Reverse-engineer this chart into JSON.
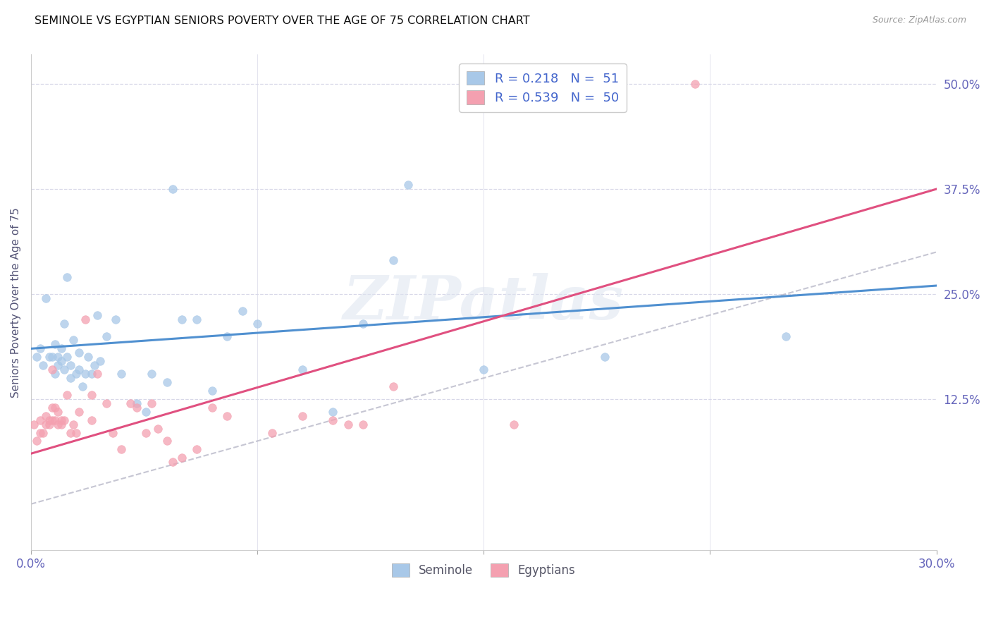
{
  "title": "SEMINOLE VS EGYPTIAN SENIORS POVERTY OVER THE AGE OF 75 CORRELATION CHART",
  "source": "Source: ZipAtlas.com",
  "ylabel": "Seniors Poverty Over the Age of 75",
  "xlim": [
    0.0,
    0.3
  ],
  "ylim": [
    -0.055,
    0.535
  ],
  "yticks_right": [
    0.125,
    0.25,
    0.375,
    0.5
  ],
  "ytick_labels_right": [
    "12.5%",
    "25.0%",
    "37.5%",
    "50.0%"
  ],
  "xticks": [
    0.0,
    0.075,
    0.15,
    0.225,
    0.3
  ],
  "xtick_labels": [
    "0.0%",
    "",
    "",
    "",
    "30.0%"
  ],
  "legend_label1": "R = 0.218   N =  51",
  "legend_label2": "R = 0.539   N =  50",
  "legend_bottom1": "Seminole",
  "legend_bottom2": "Egyptians",
  "blue_color": "#a8c8e8",
  "pink_color": "#f4a0b0",
  "blue_line_color": "#5090d0",
  "pink_line_color": "#e05080",
  "blue_trend_x0": 0.0,
  "blue_trend_y0": 0.185,
  "blue_trend_x1": 0.3,
  "blue_trend_y1": 0.26,
  "pink_trend_x0": 0.0,
  "pink_trend_y0": 0.06,
  "pink_trend_x1": 0.3,
  "pink_trend_y1": 0.375,
  "seminole_x": [
    0.002,
    0.003,
    0.004,
    0.005,
    0.006,
    0.007,
    0.008,
    0.008,
    0.009,
    0.009,
    0.01,
    0.01,
    0.011,
    0.011,
    0.012,
    0.012,
    0.013,
    0.013,
    0.014,
    0.015,
    0.016,
    0.016,
    0.017,
    0.018,
    0.019,
    0.02,
    0.021,
    0.022,
    0.023,
    0.025,
    0.028,
    0.03,
    0.035,
    0.038,
    0.04,
    0.045,
    0.047,
    0.05,
    0.055,
    0.06,
    0.065,
    0.07,
    0.075,
    0.09,
    0.1,
    0.11,
    0.12,
    0.125,
    0.15,
    0.19,
    0.25
  ],
  "seminole_y": [
    0.175,
    0.185,
    0.165,
    0.245,
    0.175,
    0.175,
    0.19,
    0.155,
    0.175,
    0.165,
    0.185,
    0.17,
    0.16,
    0.215,
    0.27,
    0.175,
    0.165,
    0.15,
    0.195,
    0.155,
    0.16,
    0.18,
    0.14,
    0.155,
    0.175,
    0.155,
    0.165,
    0.225,
    0.17,
    0.2,
    0.22,
    0.155,
    0.12,
    0.11,
    0.155,
    0.145,
    0.375,
    0.22,
    0.22,
    0.135,
    0.2,
    0.23,
    0.215,
    0.16,
    0.11,
    0.215,
    0.29,
    0.38,
    0.16,
    0.175,
    0.2
  ],
  "egyptian_x": [
    0.001,
    0.002,
    0.003,
    0.003,
    0.004,
    0.005,
    0.005,
    0.006,
    0.006,
    0.007,
    0.007,
    0.007,
    0.008,
    0.008,
    0.009,
    0.009,
    0.01,
    0.01,
    0.011,
    0.012,
    0.013,
    0.014,
    0.015,
    0.016,
    0.018,
    0.02,
    0.02,
    0.022,
    0.025,
    0.027,
    0.03,
    0.033,
    0.035,
    0.038,
    0.04,
    0.042,
    0.045,
    0.047,
    0.05,
    0.055,
    0.06,
    0.065,
    0.08,
    0.09,
    0.1,
    0.105,
    0.11,
    0.12,
    0.16,
    0.22
  ],
  "egyptian_y": [
    0.095,
    0.075,
    0.085,
    0.1,
    0.085,
    0.095,
    0.105,
    0.095,
    0.1,
    0.1,
    0.115,
    0.16,
    0.1,
    0.115,
    0.095,
    0.11,
    0.1,
    0.095,
    0.1,
    0.13,
    0.085,
    0.095,
    0.085,
    0.11,
    0.22,
    0.1,
    0.13,
    0.155,
    0.12,
    0.085,
    0.065,
    0.12,
    0.115,
    0.085,
    0.12,
    0.09,
    0.075,
    0.05,
    0.055,
    0.065,
    0.115,
    0.105,
    0.085,
    0.105,
    0.1,
    0.095,
    0.095,
    0.14,
    0.095,
    0.5
  ],
  "background_color": "#ffffff",
  "grid_color": "#d8d8e8",
  "watermark_text": "ZIPatlas",
  "title_fontsize": 11.5,
  "source_fontsize": 9
}
